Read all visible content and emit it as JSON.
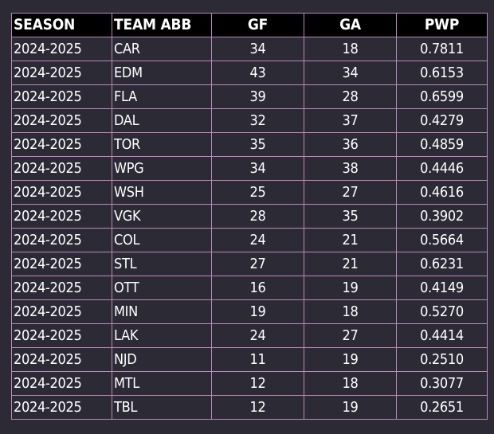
{
  "chart_data": {
    "type": "table",
    "columns": [
      "SEASON",
      "TEAM ABB",
      "GF",
      "GA",
      "PWP"
    ],
    "rows": [
      [
        "2024-2025",
        "CAR",
        "34",
        "18",
        "0.7811"
      ],
      [
        "2024-2025",
        "EDM",
        "43",
        "34",
        "0.6153"
      ],
      [
        "2024-2025",
        "FLA",
        "39",
        "28",
        "0.6599"
      ],
      [
        "2024-2025",
        "DAL",
        "32",
        "37",
        "0.4279"
      ],
      [
        "2024-2025",
        "TOR",
        "35",
        "36",
        "0.4859"
      ],
      [
        "2024-2025",
        "WPG",
        "34",
        "38",
        "0.4446"
      ],
      [
        "2024-2025",
        "WSH",
        "25",
        "27",
        "0.4616"
      ],
      [
        "2024-2025",
        "VGK",
        "28",
        "35",
        "0.3902"
      ],
      [
        "2024-2025",
        "COL",
        "24",
        "21",
        "0.5664"
      ],
      [
        "2024-2025",
        "STL",
        "27",
        "21",
        "0.6231"
      ],
      [
        "2024-2025",
        "OTT",
        "16",
        "19",
        "0.4149"
      ],
      [
        "2024-2025",
        "MIN",
        "19",
        "18",
        "0.5270"
      ],
      [
        "2024-2025",
        "LAK",
        "24",
        "27",
        "0.4414"
      ],
      [
        "2024-2025",
        "NJD",
        "11",
        "19",
        "0.2510"
      ],
      [
        "2024-2025",
        "MTL",
        "12",
        "18",
        "0.3077"
      ],
      [
        "2024-2025",
        "TBL",
        "12",
        "19",
        "0.2651"
      ]
    ]
  },
  "colors": {
    "background": "#2b2a35",
    "header_background": "#000000",
    "grid": "#b98bbd",
    "text": "#ffffff"
  }
}
